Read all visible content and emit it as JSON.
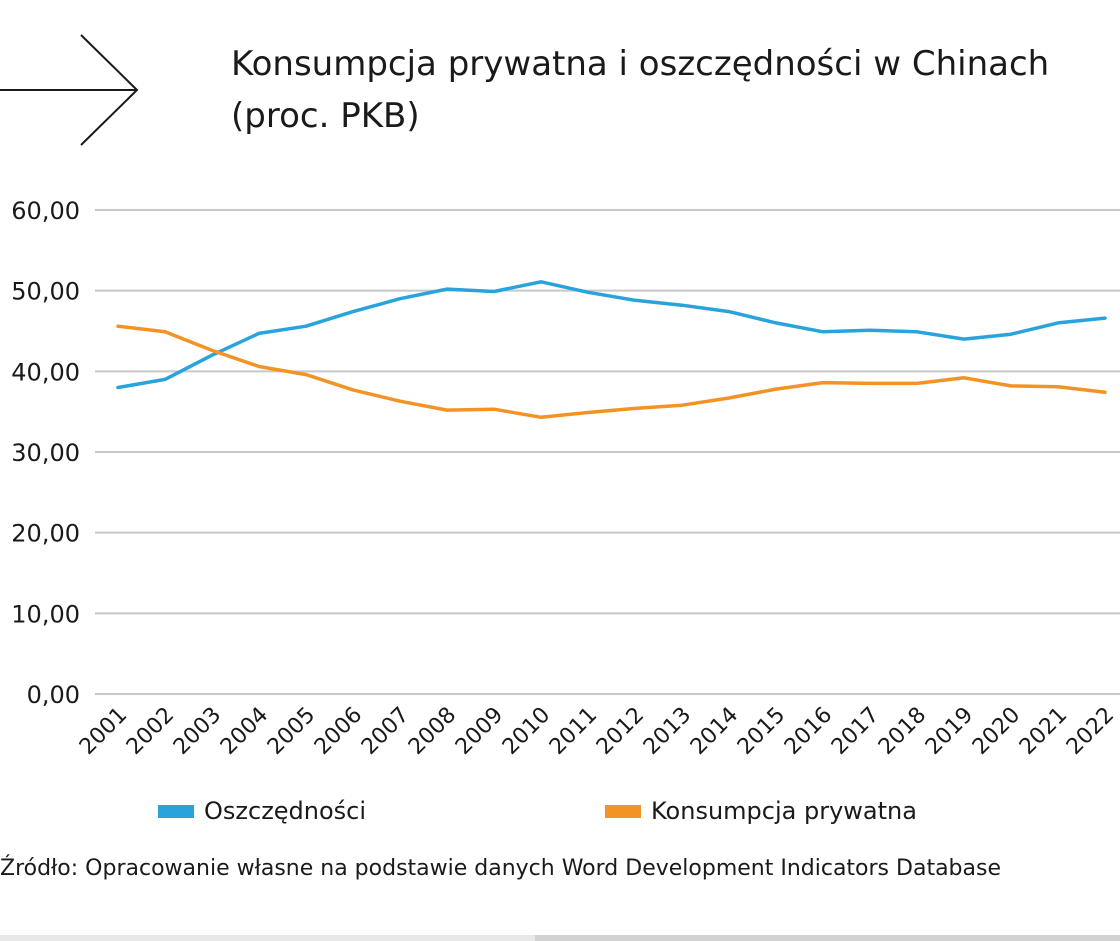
{
  "title": {
    "line1": "Konsumpcja prywatna i oszczędności w Chinach",
    "line2": "(proc. PKB)"
  },
  "source": "Źródło: Opracowanie własne na podstawie danych Word Development Indicators Database",
  "colors": {
    "savings": "#29a3dc",
    "consumption": "#f39325",
    "grid": "#c8c8c8",
    "text": "#1a1a1a"
  },
  "chart_data": {
    "type": "line",
    "categories": [
      "2001",
      "2002",
      "2003",
      "2004",
      "2005",
      "2006",
      "2007",
      "2008",
      "2009",
      "2010",
      "2011",
      "2012",
      "2013",
      "2014",
      "2015",
      "2016",
      "2017",
      "2018",
      "2019",
      "2020",
      "2021",
      "2022"
    ],
    "series": [
      {
        "name": "Oszczędności",
        "color": "#29a3dc",
        "values": [
          38.0,
          39.0,
          42.0,
          44.7,
          45.6,
          47.4,
          49.0,
          50.2,
          49.9,
          51.1,
          49.8,
          48.8,
          48.2,
          47.4,
          46.0,
          44.9,
          45.1,
          44.9,
          44.0,
          44.6,
          46.0,
          46.6
        ]
      },
      {
        "name": "Konsumpcja prywatna",
        "color": "#f39325",
        "values": [
          45.6,
          44.9,
          42.6,
          40.6,
          39.6,
          37.7,
          36.3,
          35.2,
          35.3,
          34.3,
          34.9,
          35.4,
          35.8,
          36.7,
          37.8,
          38.6,
          38.5,
          38.5,
          39.2,
          38.2,
          38.1,
          37.4
        ]
      }
    ],
    "y_ticks": [
      "0,00",
      "10,00",
      "20,00",
      "30,00",
      "40,00",
      "50,00",
      "60,00"
    ],
    "ylim": [
      0,
      60
    ],
    "grid": true,
    "legend_position": "bottom"
  }
}
